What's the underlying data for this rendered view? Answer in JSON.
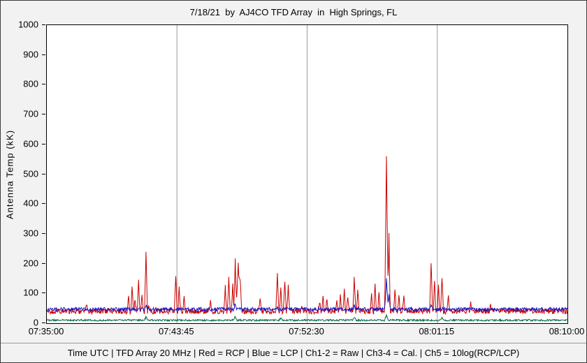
{
  "window": {
    "title": "7/18/21  by  AJ4CO TFD Array  in  High Springs, FL",
    "status_bar": "Time UTC | TFD Array 20 MHz | Red = RCP | Blue = LCP | Ch1-2 = Raw | Ch3-4 = Cal. | Ch5 = 10log(RCP/LCP)"
  },
  "chart_data": {
    "type": "line",
    "title": "7/18/21  by  AJ4CO TFD Array  in  High Springs, FL",
    "xlabel": "Time UTC",
    "ylabel": "Antenna Temp (kK)",
    "ylim": [
      0,
      1000
    ],
    "y_ticks": [
      0,
      100,
      200,
      300,
      400,
      500,
      600,
      700,
      800,
      900,
      1000
    ],
    "x_range_seconds": [
      0,
      2100
    ],
    "x_ticks": [
      {
        "label": "07:35:00",
        "t": 0
      },
      {
        "label": "07:43:45",
        "t": 525
      },
      {
        "label": "07:52:30",
        "t": 1050
      },
      {
        "label": "08:01:15",
        "t": 1575
      },
      {
        "label": "08:10:00",
        "t": 2100
      }
    ],
    "grid": "vertical-lines-at-x-ticks",
    "legend_position": "status-bar",
    "colors": {
      "rcp": "#c80000",
      "lcp": "#1414c8",
      "ratio": "#00663c",
      "grid": "#9c9c9c",
      "frame": "#000000",
      "plot_bg": "#ffffff",
      "window_bg": "#f2f2f2"
    },
    "series": [
      {
        "name": "RCP",
        "color": "#c80000",
        "baseline": 40,
        "noise": 9,
        "spikes": [
          [
            160,
            60,
            5
          ],
          [
            250,
            58,
            5
          ],
          [
            330,
            90,
            6
          ],
          [
            344,
            120,
            5
          ],
          [
            356,
            80,
            5
          ],
          [
            370,
            150,
            5
          ],
          [
            384,
            100,
            5
          ],
          [
            400,
            235,
            6
          ],
          [
            412,
            60,
            5
          ],
          [
            520,
            150,
            6
          ],
          [
            534,
            120,
            5
          ],
          [
            554,
            90,
            5
          ],
          [
            660,
            70,
            5
          ],
          [
            720,
            120,
            6
          ],
          [
            734,
            150,
            6
          ],
          [
            750,
            130,
            5
          ],
          [
            760,
            210,
            6
          ],
          [
            772,
            195,
            8
          ],
          [
            780,
            150,
            6
          ],
          [
            860,
            90,
            5
          ],
          [
            930,
            165,
            6
          ],
          [
            944,
            120,
            5
          ],
          [
            960,
            140,
            6
          ],
          [
            974,
            130,
            5
          ],
          [
            1030,
            60,
            5
          ],
          [
            1100,
            75,
            5
          ],
          [
            1114,
            90,
            5
          ],
          [
            1130,
            85,
            5
          ],
          [
            1170,
            80,
            5
          ],
          [
            1184,
            95,
            5
          ],
          [
            1200,
            110,
            5
          ],
          [
            1214,
            90,
            5
          ],
          [
            1240,
            155,
            6
          ],
          [
            1254,
            120,
            5
          ],
          [
            1310,
            100,
            5
          ],
          [
            1324,
            130,
            5
          ],
          [
            1340,
            110,
            5
          ],
          [
            1370,
            555,
            7
          ],
          [
            1380,
            300,
            5
          ],
          [
            1404,
            120,
            5
          ],
          [
            1420,
            100,
            5
          ],
          [
            1440,
            90,
            5
          ],
          [
            1550,
            200,
            6
          ],
          [
            1564,
            150,
            5
          ],
          [
            1580,
            130,
            5
          ],
          [
            1594,
            150,
            6
          ],
          [
            1620,
            90,
            5
          ],
          [
            1710,
            75,
            5
          ],
          [
            1790,
            58,
            5
          ]
        ]
      },
      {
        "name": "LCP",
        "color": "#1414c8",
        "baseline": 47,
        "noise": 6,
        "spikes": [
          [
            400,
            62,
            5
          ],
          [
            760,
            68,
            5
          ],
          [
            930,
            58,
            5
          ],
          [
            1240,
            60,
            5
          ],
          [
            1370,
            150,
            7
          ],
          [
            1380,
            92,
            5
          ],
          [
            1550,
            62,
            5
          ]
        ]
      },
      {
        "name": "10log(RCP/LCP)",
        "color": "#00663c",
        "baseline": 10,
        "noise": 3,
        "spikes": [
          [
            400,
            20,
            8
          ],
          [
            760,
            22,
            8
          ],
          [
            944,
            18,
            8
          ],
          [
            1240,
            20,
            8
          ],
          [
            1370,
            26,
            8
          ],
          [
            1594,
            18,
            8
          ]
        ]
      }
    ]
  }
}
